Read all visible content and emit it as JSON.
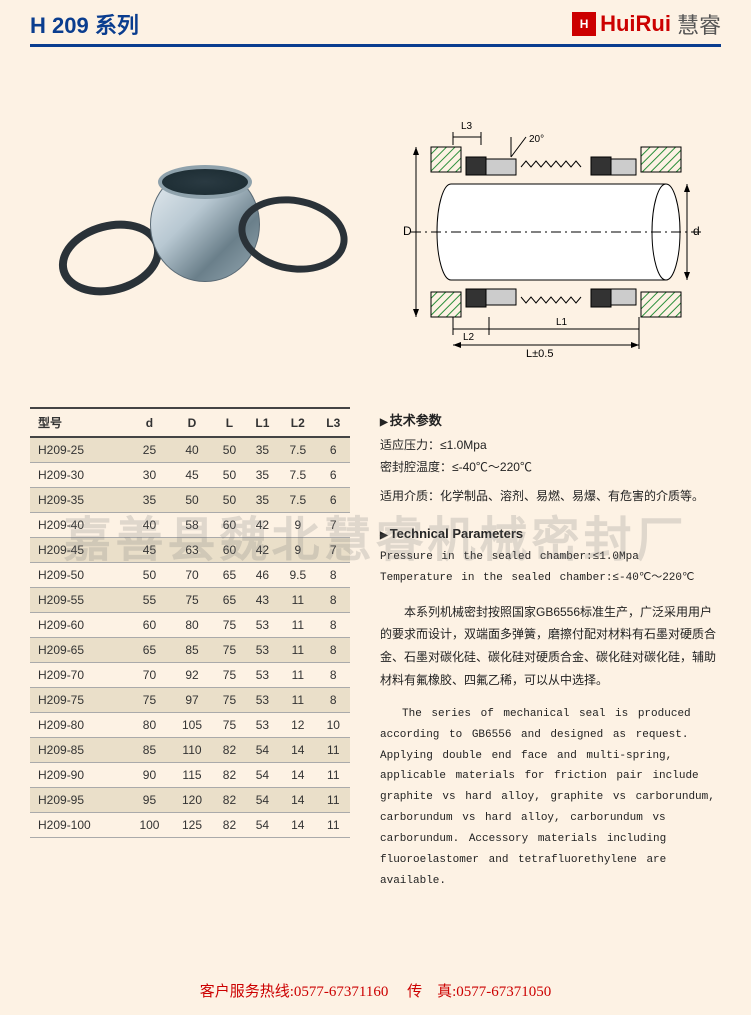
{
  "header": {
    "series_title": "H 209 系列",
    "brand_logo_text": "H",
    "brand_en": "HuiRui",
    "brand_cn": "慧睿",
    "rule_color": "#0a3d8f"
  },
  "watermark": "嘉善县魏北慧睿机械密封厂",
  "schematic": {
    "labels": {
      "L3": "L3",
      "angle": "20°",
      "D": "D",
      "d": "d",
      "L2": "L2",
      "L1": "L1",
      "Ltol": "L±0.5"
    },
    "hatch_color": "#2a8f3a",
    "line_color": "#000000",
    "shaft_fill": "#ffffff"
  },
  "table": {
    "columns": [
      "型号",
      "d",
      "D",
      "L",
      "L1",
      "L2",
      "L3"
    ],
    "rows": [
      [
        "H209-25",
        "25",
        "40",
        "50",
        "35",
        "7.5",
        "6"
      ],
      [
        "H209-30",
        "30",
        "45",
        "50",
        "35",
        "7.5",
        "6"
      ],
      [
        "H209-35",
        "35",
        "50",
        "50",
        "35",
        "7.5",
        "6"
      ],
      [
        "H209-40",
        "40",
        "58",
        "60",
        "42",
        "9",
        "7"
      ],
      [
        "H209-45",
        "45",
        "63",
        "60",
        "42",
        "9",
        "7"
      ],
      [
        "H209-50",
        "50",
        "70",
        "65",
        "46",
        "9.5",
        "8"
      ],
      [
        "H209-55",
        "55",
        "75",
        "65",
        "43",
        "11",
        "8"
      ],
      [
        "H209-60",
        "60",
        "80",
        "75",
        "53",
        "11",
        "8"
      ],
      [
        "H209-65",
        "65",
        "85",
        "75",
        "53",
        "11",
        "8"
      ],
      [
        "H209-70",
        "70",
        "92",
        "75",
        "53",
        "11",
        "8"
      ],
      [
        "H209-75",
        "75",
        "97",
        "75",
        "53",
        "11",
        "8"
      ],
      [
        "H209-80",
        "80",
        "105",
        "75",
        "53",
        "12",
        "10"
      ],
      [
        "H209-85",
        "85",
        "110",
        "82",
        "54",
        "14",
        "11"
      ],
      [
        "H209-90",
        "90",
        "115",
        "82",
        "54",
        "14",
        "11"
      ],
      [
        "H209-95",
        "95",
        "120",
        "82",
        "54",
        "14",
        "11"
      ],
      [
        "H209-100",
        "100",
        "125",
        "82",
        "54",
        "14",
        "11"
      ]
    ],
    "alt_row_bg": "#eadfc9",
    "header_border_color": "#444444"
  },
  "text": {
    "cn_title": "技术参数",
    "cn_pressure": "适应压力：≤1.0Mpa",
    "cn_temperature": "密封腔温度：≤-40℃～220℃",
    "cn_media": "适用介质：化学制品、溶剂、易燃、易爆、有危害的介质等。",
    "en_title": "Technical Parameters",
    "en_pressure": "Pressure in the sealed chamber:≤1.0Mpa",
    "en_temperature": "Temperature in the sealed chamber:≤-40℃～220℃",
    "cn_body": "本系列机械密封按照国家GB6556标准生产，广泛采用用户的要求而设计，双端面多弹簧，磨擦付配对材料有石墨对硬质合金、石墨对碳化硅、碳化硅对硬质合金、碳化硅对碳化硅，辅助材料有氟橡胶、四氟乙稀，可以从中选择。",
    "en_body": "The series of mechanical seal is produced according to GB6556 and designed as request. Applying double end face and multi-spring, applicable materials for friction pair include graphite vs hard alloy, graphite vs carborundum, carborundum vs hard alloy, carborundum vs carborundum. Accessory materials including fluoroelastomer and tetrafluorethylene are available."
  },
  "footer": {
    "hotline_label": "客户服务热线:",
    "hotline": "0577-67371160",
    "fax_label": "传　真:",
    "fax": "0577-67371050"
  },
  "colors": {
    "page_bg": "#fdf2e4",
    "title_blue": "#0a3d8f",
    "brand_red": "#cc0000",
    "footer_red": "#cc0000"
  }
}
